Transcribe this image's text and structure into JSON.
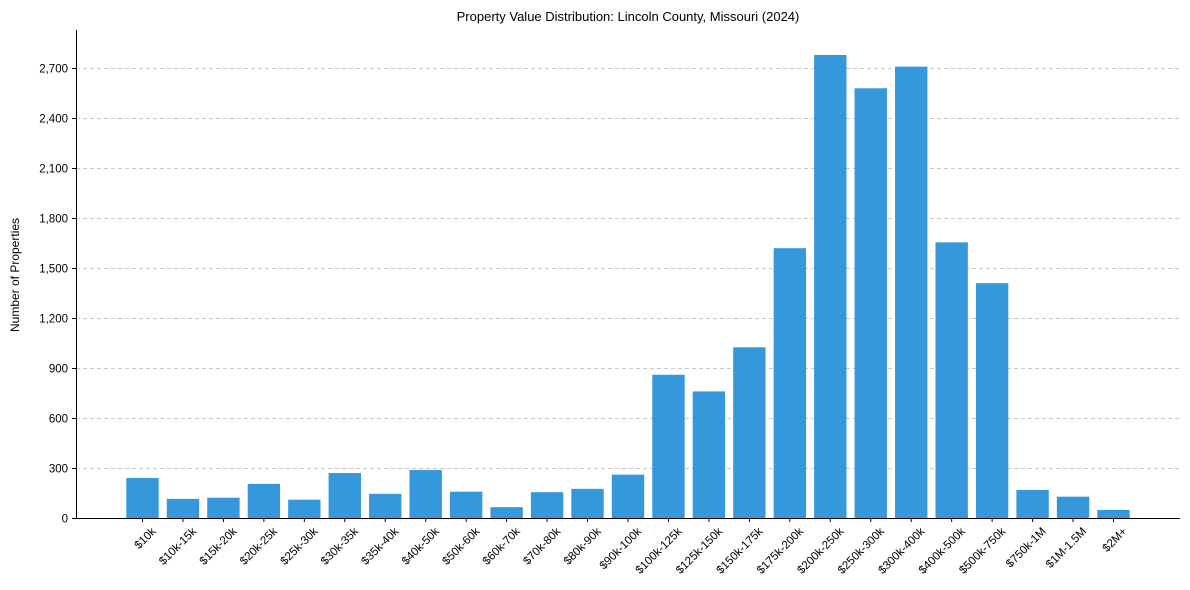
{
  "chart_data": {
    "type": "bar",
    "title": "Property Value Distribution: Lincoln County, Missouri (2024)",
    "xlabel": "",
    "ylabel": "Number of Properties",
    "ylim": [
      0,
      2930
    ],
    "yticks": [
      0,
      300,
      600,
      900,
      1200,
      1500,
      1800,
      2100,
      2400,
      2700
    ],
    "ytick_labels": [
      "0",
      "300",
      "600",
      "900",
      "1,200",
      "1,500",
      "1,800",
      "2,100",
      "2,400",
      "2,700"
    ],
    "grid": "y-dashed",
    "bar_color": "#3498db",
    "categories": [
      "$10k",
      "$10k-15k",
      "$15k-20k",
      "$20k-25k",
      "$25k-30k",
      "$30k-35k",
      "$35k-40k",
      "$40k-50k",
      "$50k-60k",
      "$60k-70k",
      "$70k-80k",
      "$80k-90k",
      "$90k-100k",
      "$100k-125k",
      "$125k-150k",
      "$150k-175k",
      "$175k-200k",
      "$200k-250k",
      "$250k-300k",
      "$300k-400k",
      "$400k-500k",
      "$500k-750k",
      "$750k-1M",
      "$1M-1.5M",
      "$2M+"
    ],
    "values": [
      240,
      115,
      122,
      205,
      110,
      270,
      145,
      288,
      158,
      65,
      155,
      175,
      260,
      860,
      760,
      1025,
      1620,
      2780,
      2580,
      2710,
      1655,
      1410,
      168,
      128,
      48
    ]
  }
}
